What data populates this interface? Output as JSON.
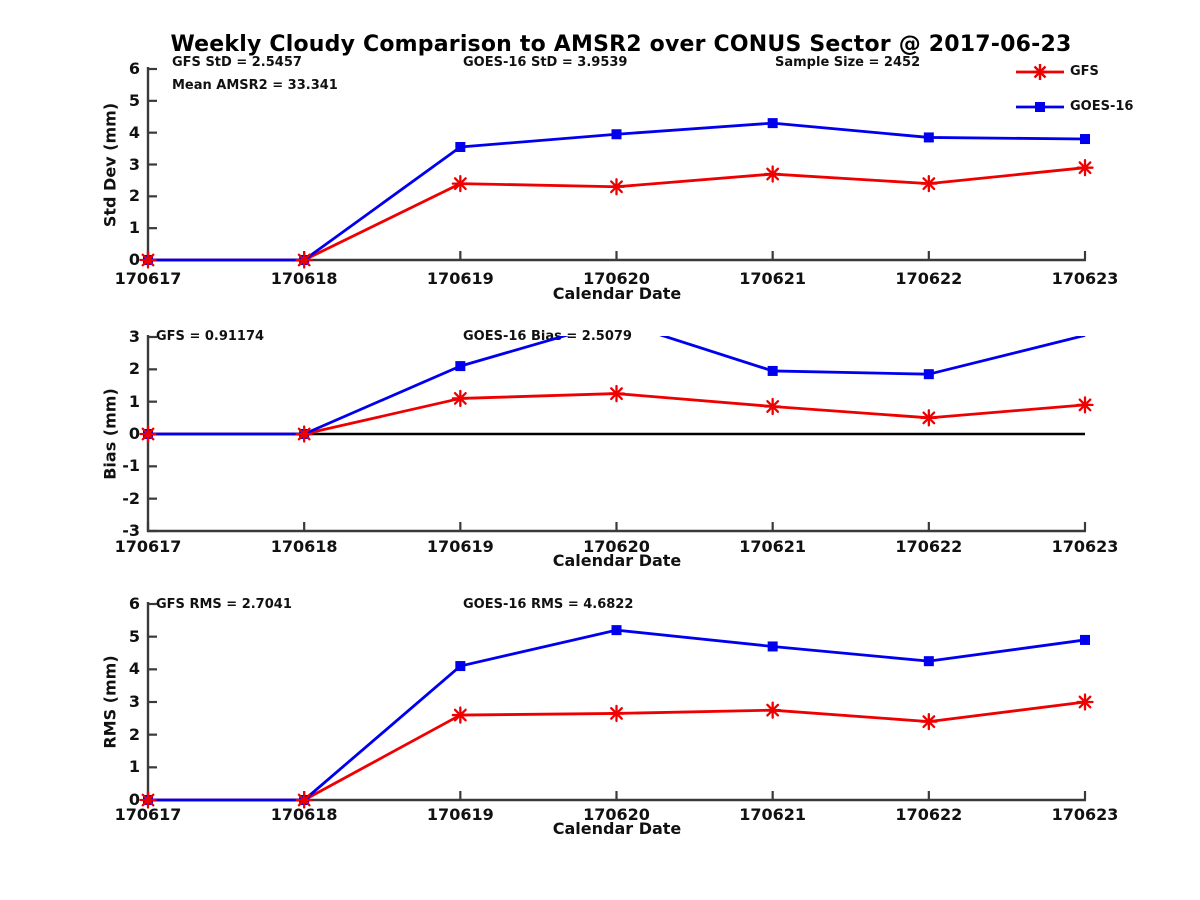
{
  "title": "Weekly Cloudy Comparison to AMSR2 over CONUS Sector @ 2017-06-23",
  "xlabel": "Calendar Date",
  "categories": [
    "170617",
    "170618",
    "170619",
    "170620",
    "170621",
    "170622",
    "170623"
  ],
  "colors": {
    "gfs": "#ee0000",
    "goes16": "#0000ee",
    "axis": "#3a3a3a",
    "zero_line": "#000000",
    "text": "#111111"
  },
  "legend": {
    "position": "top-right",
    "entries": [
      {
        "label": "GFS",
        "marker": "asterisk",
        "color": "#ee0000"
      },
      {
        "label": "GOES-16",
        "marker": "square",
        "color": "#0000ee"
      }
    ]
  },
  "chart_data": [
    {
      "type": "line",
      "ylabel": "Std Dev (mm)",
      "ylim": [
        0,
        6
      ],
      "yticks": [
        0,
        1,
        2,
        3,
        4,
        5,
        6
      ],
      "grid": false,
      "annotations": [
        {
          "text": "GFS StD = 2.5457"
        },
        {
          "text": "Mean AMSR2 = 33.341"
        },
        {
          "text": "GOES-16 StD = 3.9539"
        },
        {
          "text": "Sample Size = 2452"
        }
      ],
      "series": [
        {
          "name": "GFS",
          "values": [
            0,
            0,
            2.4,
            2.3,
            2.7,
            2.4,
            2.9
          ]
        },
        {
          "name": "GOES-16",
          "values": [
            0,
            0,
            3.55,
            3.95,
            4.3,
            3.85,
            3.8
          ]
        }
      ]
    },
    {
      "type": "line",
      "ylabel": "Bias (mm)",
      "ylim": [
        -3,
        3
      ],
      "yticks": [
        -3,
        -2,
        -1,
        0,
        1,
        2,
        3
      ],
      "grid": false,
      "zero_line": true,
      "annotations": [
        {
          "text": "GFS = 0.91174"
        },
        {
          "text": "GOES-16 Bias = 2.5079"
        }
      ],
      "series": [
        {
          "name": "GFS",
          "values": [
            0,
            0,
            1.1,
            1.25,
            0.85,
            0.5,
            0.9
          ]
        },
        {
          "name": "GOES-16",
          "values": [
            0,
            0,
            2.1,
            3.5,
            1.95,
            1.85,
            3.05
          ]
        }
      ]
    },
    {
      "type": "line",
      "ylabel": "RMS (mm)",
      "ylim": [
        0,
        6
      ],
      "yticks": [
        0,
        1,
        2,
        3,
        4,
        5,
        6
      ],
      "grid": false,
      "annotations": [
        {
          "text": "GFS RMS = 2.7041"
        },
        {
          "text": "GOES-16 RMS = 4.6822"
        }
      ],
      "series": [
        {
          "name": "GFS",
          "values": [
            0,
            0,
            2.6,
            2.65,
            2.75,
            2.4,
            3.0
          ]
        },
        {
          "name": "GOES-16",
          "values": [
            0,
            0,
            4.1,
            5.2,
            4.7,
            4.25,
            4.9
          ]
        }
      ]
    }
  ]
}
